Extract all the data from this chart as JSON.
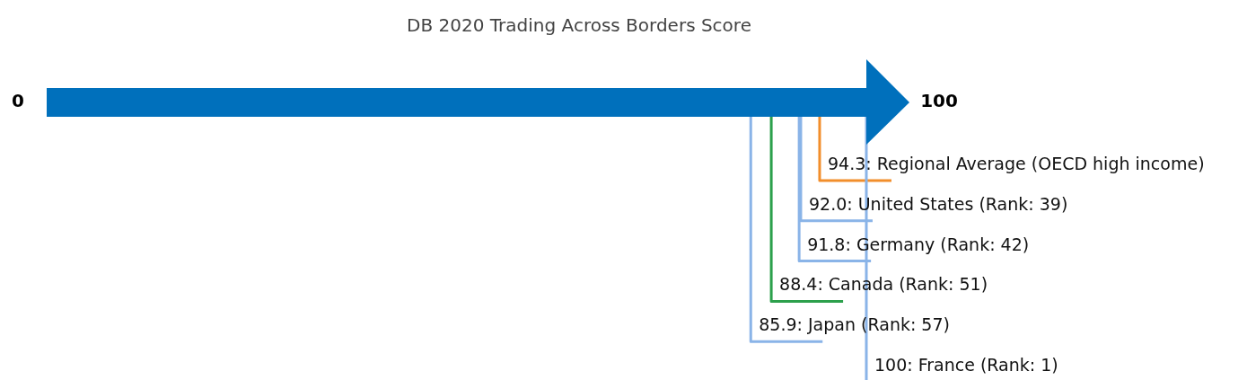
{
  "chart_data": {
    "type": "other",
    "title": "DB 2020 Trading Across Borders Score",
    "categories": [
      "Regional Average (OECD high income)",
      "United States (Rank: 39)",
      "Germany (Rank: 42)",
      "Canada (Rank: 51)",
      "Japan (Rank: 57)",
      "France (Rank: 1)"
    ],
    "values": [
      94.3,
      92.0,
      91.8,
      88.4,
      85.9,
      100
    ],
    "value_labels": [
      "94.3:",
      "92.0:",
      "91.8:",
      "88.4:",
      "85.9:",
      "100:"
    ],
    "colors": [
      "#f28e2b",
      "#8ab4e8",
      "#8ab4e8",
      "#2ca04c",
      "#8ab4e8",
      "#8ab4e8"
    ],
    "color": "#0070bc",
    "annotations": [
      "0",
      "100"
    ]
  }
}
